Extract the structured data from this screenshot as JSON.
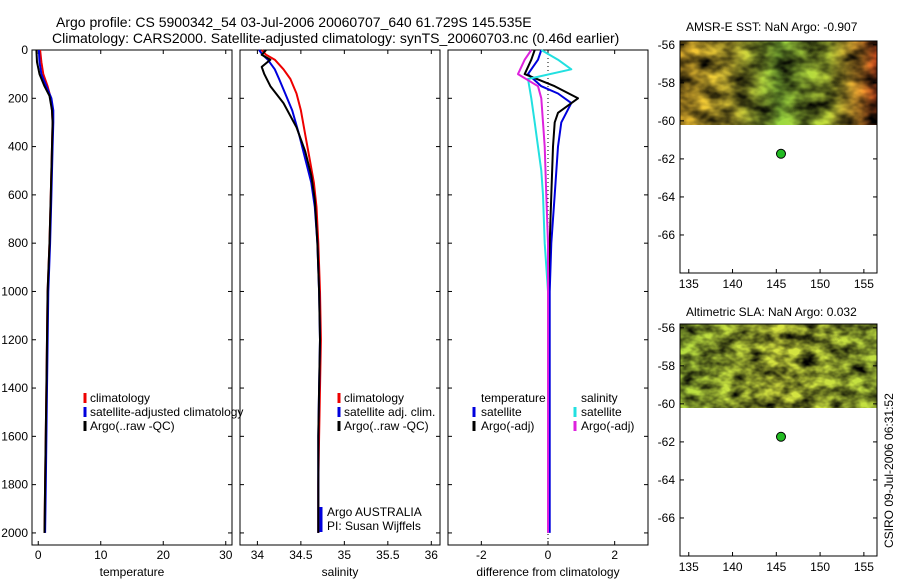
{
  "title_line1": "Argo profile: CS 5900342_54 03-Jul-2006 20060707_640 61.729S 145.535E",
  "title_line2": "Climatology: CARS2000. Satellite-adjusted climatology: synTS_20060703.nc (0.46d earlier)",
  "watermark": "CSIRO 09-Jul-2006 06:31:52",
  "credit_line1": "Argo AUSTRALIA",
  "credit_line2": "PI: Susan Wijffels",
  "colors": {
    "climatology": "#ee0000",
    "satellite": "#0000dd",
    "argo": "#000000",
    "sat_sal": "#22e0e0",
    "argo_sal": "#dd22dd"
  },
  "chart_data": [
    {
      "id": "temperature",
      "type": "line",
      "xlabel": "temperature",
      "ylabel": "",
      "xlim": [
        -1,
        31
      ],
      "ylim": [
        2050,
        0
      ],
      "xticks": [
        0,
        10,
        20,
        30
      ],
      "xtick_labels": [
        "0",
        "10",
        "20",
        "30"
      ],
      "yticks": [
        0,
        200,
        400,
        600,
        800,
        1000,
        1200,
        1400,
        1600,
        1800,
        2000
      ],
      "ytick_labels": [
        "0",
        "200",
        "400",
        "600",
        "800",
        "1000",
        "1200",
        "1400",
        "1600",
        "1800",
        "2000"
      ],
      "legend": [
        "climatology",
        "satellite-adjusted climatology",
        "Argo(..raw -QC)"
      ],
      "series": [
        {
          "name": "climatology",
          "color": "#ee0000",
          "x": [
            0.3,
            0.5,
            0.8,
            1.5,
            2.0,
            2.2,
            2.3,
            2.2,
            2.0,
            1.8,
            1.5,
            1.3,
            1.1,
            1.0
          ],
          "y": [
            0,
            50,
            100,
            150,
            200,
            250,
            300,
            400,
            600,
            800,
            1000,
            1400,
            1800,
            2000
          ]
        },
        {
          "name": "satellite-adjusted climatology",
          "color": "#0000dd",
          "x": [
            0.1,
            0.2,
            0.5,
            1.3,
            2.1,
            2.4,
            2.4,
            2.3,
            2.1,
            1.9,
            1.6,
            1.4,
            1.2,
            1.1
          ],
          "y": [
            0,
            50,
            100,
            150,
            200,
            250,
            300,
            400,
            600,
            800,
            1000,
            1400,
            1800,
            2000
          ]
        },
        {
          "name": "Argo(..raw -QC)",
          "color": "#000000",
          "x": [
            -0.3,
            -0.2,
            0.2,
            1.0,
            1.8,
            2.2,
            2.3,
            2.2,
            2.0,
            1.8,
            1.5,
            1.3,
            1.1,
            1.0
          ],
          "y": [
            0,
            50,
            100,
            150,
            190,
            250,
            300,
            400,
            600,
            800,
            1000,
            1400,
            1800,
            2000
          ]
        }
      ]
    },
    {
      "id": "salinity",
      "type": "line",
      "xlabel": "salinity",
      "ylabel": "",
      "xlim": [
        33.8,
        36.1
      ],
      "ylim": [
        2050,
        0
      ],
      "xticks": [
        34,
        34.5,
        35,
        35.5,
        36
      ],
      "xtick_labels": [
        "34",
        "34.5",
        "35",
        "35.5",
        "36"
      ],
      "legend": [
        "climatology",
        "satellite adj. clim.",
        "Argo(..raw -QC)"
      ],
      "series": [
        {
          "name": "climatology",
          "color": "#ee0000",
          "x": [
            34.05,
            34.1,
            34.2,
            34.3,
            34.38,
            34.45,
            34.5,
            34.55,
            34.6,
            34.65,
            34.68,
            34.7,
            34.72,
            34.73,
            34.72,
            34.71,
            34.7,
            34.7
          ],
          "y": [
            0,
            20,
            40,
            80,
            120,
            180,
            250,
            350,
            450,
            550,
            650,
            800,
            1000,
            1200,
            1400,
            1600,
            1800,
            2000
          ]
        },
        {
          "name": "satellite adj. clim.",
          "color": "#0000dd",
          "x": [
            34.02,
            34.06,
            34.12,
            34.2,
            34.25,
            34.32,
            34.4,
            34.48,
            34.55,
            34.62,
            34.66,
            34.69,
            34.71,
            34.72,
            34.71,
            34.7,
            34.7,
            34.7
          ],
          "y": [
            0,
            20,
            40,
            80,
            120,
            180,
            250,
            350,
            450,
            550,
            650,
            800,
            1000,
            1200,
            1400,
            1600,
            1800,
            2000
          ]
        },
        {
          "name": "Argo(..raw -QC)",
          "color": "#000000",
          "x": [
            34.1,
            34.05,
            34.15,
            34.05,
            34.08,
            34.15,
            34.3,
            34.45,
            34.55,
            34.62,
            34.66,
            34.69,
            34.71,
            34.72,
            34.71,
            34.7,
            34.7,
            34.7
          ],
          "y": [
            0,
            20,
            40,
            70,
            100,
            150,
            220,
            320,
            420,
            520,
            620,
            800,
            1000,
            1200,
            1400,
            1600,
            1800,
            2000
          ]
        }
      ]
    },
    {
      "id": "difference",
      "type": "line",
      "xlabel": "difference from climatology",
      "ylabel": "",
      "xlim": [
        -3,
        3
      ],
      "ylim": [
        2050,
        0
      ],
      "xticks": [
        -2,
        0,
        2
      ],
      "xtick_labels": [
        "-2",
        "0",
        "2"
      ],
      "legend_title_left": "temperature",
      "legend_title_right": "salinity",
      "legend": [
        "satellite",
        "Argo(-adj)",
        "satellite",
        "Argo(-adj)"
      ],
      "series": [
        {
          "name": "temperature satellite",
          "color": "#0000dd",
          "x": [
            -0.2,
            -0.3,
            -0.6,
            -0.2,
            0.3,
            0.7,
            0.4,
            0.3,
            0.2,
            0.1,
            0.05,
            0.05,
            0.05,
            0.05
          ],
          "y": [
            0,
            40,
            100,
            150,
            180,
            220,
            300,
            400,
            600,
            800,
            1000,
            1400,
            1800,
            2000
          ]
        },
        {
          "name": "temperature Argo(-adj)",
          "color": "#000000",
          "x": [
            -0.4,
            -0.5,
            -0.7,
            0.2,
            0.9,
            0.3,
            0.2,
            0.15,
            0.1,
            0.05,
            0.0,
            0.0,
            0.0,
            0.0
          ],
          "y": [
            0,
            40,
            100,
            150,
            200,
            260,
            300,
            400,
            600,
            800,
            1000,
            1400,
            1800,
            2000
          ]
        },
        {
          "name": "salinity satellite",
          "color": "#22e0e0",
          "x": [
            -0.2,
            0.3,
            0.7,
            -0.6,
            -0.5,
            -0.4,
            -0.3,
            -0.2,
            -0.15,
            -0.1,
            0.0,
            0.0,
            0.0,
            0.0
          ],
          "y": [
            0,
            40,
            80,
            120,
            200,
            300,
            400,
            500,
            600,
            800,
            1000,
            1400,
            1800,
            2000
          ]
        },
        {
          "name": "salinity Argo(-adj)",
          "color": "#dd22dd",
          "x": [
            -0.5,
            -0.7,
            -0.9,
            -0.3,
            -0.2,
            -0.15,
            -0.1,
            -0.05,
            0.0,
            0.0,
            0.0,
            0.0
          ],
          "y": [
            0,
            40,
            100,
            150,
            200,
            300,
            400,
            600,
            800,
            1000,
            1400,
            2000
          ]
        }
      ]
    },
    {
      "id": "sst_map",
      "type": "heatmap",
      "title": "AMSR-E SST: NaN Argo: -0.907",
      "xlim": [
        134,
        156.5
      ],
      "ylim": [
        -68,
        -55.8
      ],
      "xticks": [
        135,
        140,
        145,
        150,
        155
      ],
      "xtick_labels": [
        "135",
        "140",
        "145",
        "150",
        "155"
      ],
      "yticks": [
        -56,
        -58,
        -60,
        -62,
        -64,
        -66
      ],
      "ytick_labels": [
        "-56",
        "-58",
        "-60",
        "-62",
        "-64",
        "-66"
      ],
      "data_extent_lat": [
        -60,
        -55.8
      ],
      "argo_position": {
        "lon": 145.535,
        "lat": -61.729
      }
    },
    {
      "id": "sla_map",
      "type": "heatmap",
      "title": "Altimetric SLA: NaN Argo: 0.032",
      "xlim": [
        134,
        156.5
      ],
      "ylim": [
        -68,
        -55.8
      ],
      "xticks": [
        135,
        140,
        145,
        150,
        155
      ],
      "xtick_labels": [
        "135",
        "140",
        "145",
        "150",
        "155"
      ],
      "yticks": [
        -56,
        -58,
        -60,
        -62,
        -64,
        -66
      ],
      "ytick_labels": [
        "-56",
        "-58",
        "-60",
        "-62",
        "-64",
        "-66"
      ],
      "data_extent_lat": [
        -60,
        -55.8
      ],
      "argo_position": {
        "lon": 145.535,
        "lat": -61.729
      }
    }
  ]
}
